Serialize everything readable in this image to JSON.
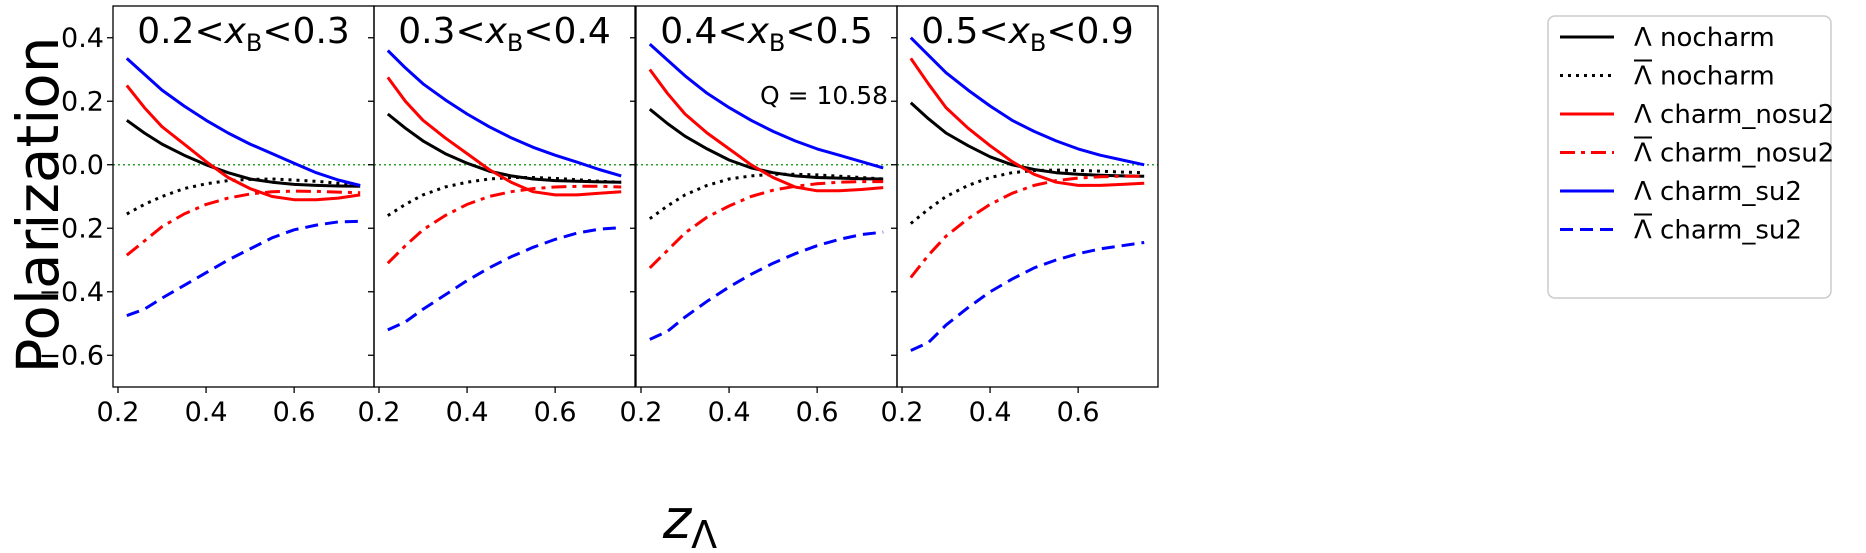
{
  "chart_data": {
    "type": "line",
    "ylabel": "Polarization",
    "xlabel": "z",
    "xlabel_sub": "Λ",
    "ylim": [
      -0.7,
      0.5
    ],
    "xlim": [
      0.2,
      0.77
    ],
    "xticks": [
      "0.2",
      "0.4",
      "0.6"
    ],
    "yticks": [
      {
        "v": 0.4,
        "label": "0.4"
      },
      {
        "v": 0.2,
        "label": "0.2"
      },
      {
        "v": 0.0,
        "label": "0.0"
      },
      {
        "v": -0.2,
        "label": "−0.2"
      },
      {
        "v": -0.4,
        "label": "−0.4"
      },
      {
        "v": -0.6,
        "label": "−0.6"
      }
    ],
    "reference_line": 0.0,
    "annotation": "Q = 10.58",
    "legend_position": "right",
    "series_styles": [
      {
        "name": "Λ nocharm",
        "color": "#000000",
        "style": "solid",
        "overline": false
      },
      {
        "name": "Λ nocharm",
        "color": "#000000",
        "style": "dotted",
        "overline": true
      },
      {
        "name": "Λ  charm_nosu2",
        "color": "#ff0000",
        "style": "solid",
        "overline": false
      },
      {
        "name": "Λ charm_nosu2",
        "color": "#ff0000",
        "style": "dashdot",
        "overline": true
      },
      {
        "name": "Λ charm_su2",
        "color": "#0000ff",
        "style": "solid",
        "overline": false
      },
      {
        "name": "Λ charm_su2",
        "color": "#0000ff",
        "style": "dashed",
        "overline": true
      }
    ],
    "panels": [
      {
        "title_pre": "0.2<",
        "title_var": "x",
        "title_sub": "B",
        "title_post": "<0.3",
        "x": [
          0.22,
          0.26,
          0.3,
          0.35,
          0.4,
          0.45,
          0.5,
          0.55,
          0.6,
          0.65,
          0.7,
          0.75
        ],
        "series": [
          [
            0.14,
            0.1,
            0.065,
            0.03,
            0.0,
            -0.025,
            -0.045,
            -0.055,
            -0.062,
            -0.065,
            -0.067,
            -0.068
          ],
          [
            -0.155,
            -0.125,
            -0.1,
            -0.075,
            -0.06,
            -0.05,
            -0.046,
            -0.045,
            -0.048,
            -0.052,
            -0.058,
            -0.065
          ],
          [
            0.25,
            0.18,
            0.12,
            0.065,
            0.01,
            -0.04,
            -0.075,
            -0.1,
            -0.11,
            -0.11,
            -0.105,
            -0.095
          ],
          [
            -0.285,
            -0.24,
            -0.195,
            -0.155,
            -0.125,
            -0.105,
            -0.092,
            -0.085,
            -0.083,
            -0.084,
            -0.086,
            -0.088
          ],
          [
            0.335,
            0.285,
            0.235,
            0.185,
            0.14,
            0.1,
            0.065,
            0.035,
            0.005,
            -0.025,
            -0.048,
            -0.065
          ],
          [
            -0.475,
            -0.455,
            -0.42,
            -0.38,
            -0.34,
            -0.3,
            -0.265,
            -0.23,
            -0.205,
            -0.19,
            -0.18,
            -0.178
          ]
        ]
      },
      {
        "title_pre": "0.3<",
        "title_var": "x",
        "title_sub": "B",
        "title_post": "<0.4",
        "x": [
          0.22,
          0.26,
          0.3,
          0.35,
          0.4,
          0.45,
          0.5,
          0.55,
          0.6,
          0.65,
          0.7,
          0.75
        ],
        "series": [
          [
            0.16,
            0.115,
            0.075,
            0.035,
            0.005,
            -0.02,
            -0.035,
            -0.045,
            -0.05,
            -0.052,
            -0.054,
            -0.055
          ],
          [
            -0.16,
            -0.125,
            -0.095,
            -0.07,
            -0.055,
            -0.045,
            -0.04,
            -0.04,
            -0.043,
            -0.047,
            -0.052,
            -0.055
          ],
          [
            0.275,
            0.2,
            0.14,
            0.085,
            0.035,
            -0.015,
            -0.055,
            -0.085,
            -0.095,
            -0.095,
            -0.09,
            -0.085
          ],
          [
            -0.31,
            -0.255,
            -0.205,
            -0.16,
            -0.125,
            -0.1,
            -0.085,
            -0.075,
            -0.07,
            -0.068,
            -0.068,
            -0.07
          ],
          [
            0.36,
            0.305,
            0.255,
            0.205,
            0.16,
            0.12,
            0.085,
            0.055,
            0.03,
            0.008,
            -0.015,
            -0.035
          ],
          [
            -0.52,
            -0.495,
            -0.455,
            -0.41,
            -0.365,
            -0.325,
            -0.29,
            -0.26,
            -0.235,
            -0.215,
            -0.203,
            -0.198
          ]
        ]
      },
      {
        "title_pre": "0.4<",
        "title_var": "x",
        "title_sub": "B",
        "title_post": "<0.5",
        "x": [
          0.22,
          0.26,
          0.3,
          0.35,
          0.4,
          0.45,
          0.5,
          0.55,
          0.6,
          0.65,
          0.7,
          0.75
        ],
        "series": [
          [
            0.175,
            0.13,
            0.09,
            0.05,
            0.015,
            -0.01,
            -0.025,
            -0.035,
            -0.04,
            -0.042,
            -0.044,
            -0.045
          ],
          [
            -0.17,
            -0.13,
            -0.095,
            -0.065,
            -0.045,
            -0.035,
            -0.03,
            -0.03,
            -0.032,
            -0.036,
            -0.04,
            -0.045
          ],
          [
            0.3,
            0.225,
            0.16,
            0.1,
            0.05,
            0.0,
            -0.04,
            -0.07,
            -0.082,
            -0.082,
            -0.078,
            -0.072
          ],
          [
            -0.325,
            -0.27,
            -0.215,
            -0.165,
            -0.13,
            -0.1,
            -0.08,
            -0.068,
            -0.06,
            -0.055,
            -0.053,
            -0.053
          ],
          [
            0.38,
            0.33,
            0.28,
            0.225,
            0.18,
            0.14,
            0.105,
            0.075,
            0.05,
            0.03,
            0.01,
            -0.01
          ],
          [
            -0.55,
            -0.525,
            -0.48,
            -0.43,
            -0.385,
            -0.345,
            -0.31,
            -0.28,
            -0.255,
            -0.235,
            -0.22,
            -0.212
          ]
        ]
      },
      {
        "title_pre": "0.5<",
        "title_var": "x",
        "title_sub": "B",
        "title_post": "<0.9",
        "x": [
          0.22,
          0.26,
          0.3,
          0.35,
          0.4,
          0.45,
          0.5,
          0.55,
          0.6,
          0.65,
          0.7,
          0.75
        ],
        "series": [
          [
            0.195,
            0.145,
            0.1,
            0.06,
            0.025,
            0.0,
            -0.015,
            -0.025,
            -0.03,
            -0.033,
            -0.035,
            -0.036
          ],
          [
            -0.185,
            -0.14,
            -0.1,
            -0.065,
            -0.04,
            -0.025,
            -0.018,
            -0.017,
            -0.018,
            -0.02,
            -0.023,
            -0.025
          ],
          [
            0.335,
            0.255,
            0.18,
            0.115,
            0.06,
            0.01,
            -0.03,
            -0.055,
            -0.065,
            -0.065,
            -0.062,
            -0.058
          ],
          [
            -0.355,
            -0.285,
            -0.225,
            -0.17,
            -0.125,
            -0.09,
            -0.065,
            -0.05,
            -0.042,
            -0.038,
            -0.036,
            -0.036
          ],
          [
            0.4,
            0.345,
            0.29,
            0.235,
            0.185,
            0.14,
            0.105,
            0.075,
            0.05,
            0.03,
            0.015,
            0.0
          ],
          [
            -0.585,
            -0.56,
            -0.505,
            -0.45,
            -0.4,
            -0.36,
            -0.325,
            -0.3,
            -0.28,
            -0.265,
            -0.255,
            -0.245
          ]
        ]
      }
    ]
  }
}
